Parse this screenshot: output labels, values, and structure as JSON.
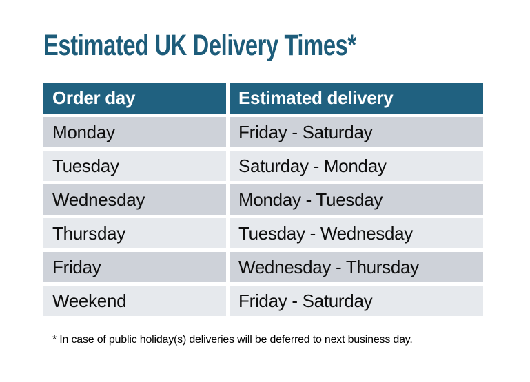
{
  "title": "Estimated UK Delivery Times*",
  "table": {
    "headers": [
      "Order day",
      "Estimated delivery"
    ],
    "rows": [
      {
        "order_day": "Monday",
        "estimated_delivery": "Friday - Saturday"
      },
      {
        "order_day": "Tuesday",
        "estimated_delivery": "Saturday - Monday"
      },
      {
        "order_day": "Wednesday",
        "estimated_delivery": "Monday - Tuesday"
      },
      {
        "order_day": "Thursday",
        "estimated_delivery": "Tuesday - Wednesday"
      },
      {
        "order_day": "Friday",
        "estimated_delivery": "Wednesday - Thursday"
      },
      {
        "order_day": "Weekend",
        "estimated_delivery": "Friday - Saturday"
      }
    ]
  },
  "footnote": "* In case of public holiday(s) deliveries will be deferred to next business day.",
  "colors": {
    "title_text": "#1d5c7a",
    "header_bg": "#206180",
    "header_text": "#ffffff",
    "row_dark": "#ced2d9",
    "row_light": "#e6e9ed",
    "cell_text": "#0e0e0e",
    "background": "#ffffff"
  }
}
